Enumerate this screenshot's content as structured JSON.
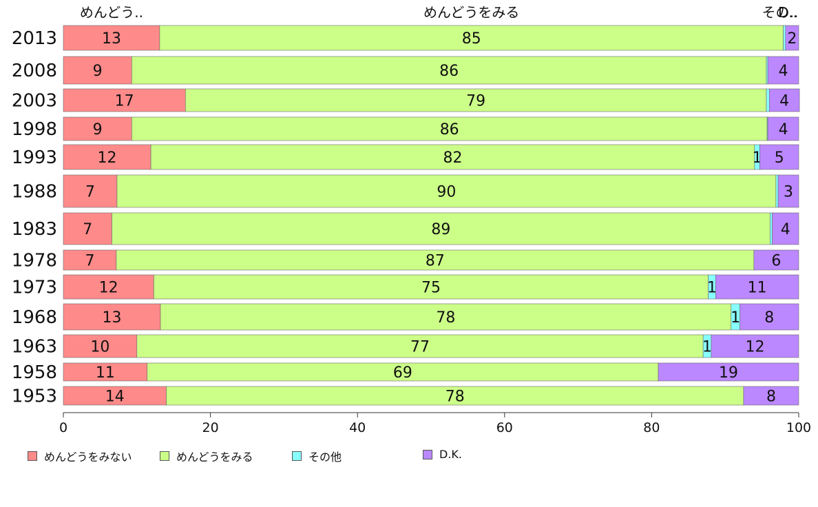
{
  "chart_data": {
    "type": "bar",
    "orientation": "horizontal",
    "stacked": true,
    "title": "",
    "xlabel": "",
    "ylabel": "",
    "xlim": [
      0,
      100
    ],
    "x_ticks": [
      "0",
      "20",
      "40",
      "60",
      "80",
      "100"
    ],
    "top_labels": [
      "めんどう..",
      "めんどうをみる",
      "その..",
      "D.."
    ],
    "categories": [
      "2013",
      "2008",
      "2003",
      "1998",
      "1993",
      "1988",
      "1983",
      "1978",
      "1973",
      "1968",
      "1963",
      "1958",
      "1953"
    ],
    "series": [
      {
        "name": "めんどうをみない",
        "color": "#ff8a8a",
        "values": [
          13,
          9,
          17,
          9,
          12,
          7,
          7,
          7,
          12,
          13,
          10,
          11,
          14
        ]
      },
      {
        "name": "めんどうをみる",
        "color": "#ccff88",
        "values": [
          85,
          86,
          79,
          86,
          82,
          90,
          89,
          87,
          75,
          78,
          77,
          69,
          78
        ]
      },
      {
        "name": "その他",
        "color": "#88ffff",
        "values": [
          0,
          0,
          0,
          0,
          1,
          0,
          0,
          0,
          1,
          1,
          1,
          0,
          0
        ]
      },
      {
        "name": "D.K.",
        "color": "#bb88ff",
        "values": [
          2,
          4,
          4,
          4,
          5,
          3,
          4,
          6,
          11,
          8,
          12,
          19,
          8
        ]
      }
    ],
    "segments_pct": [
      [
        13.1,
        84.8,
        0.3,
        1.8
      ],
      [
        9.3,
        86.3,
        0.2,
        4.2
      ],
      [
        16.6,
        79.0,
        0.4,
        4.1
      ],
      [
        9.3,
        86.4,
        0.1,
        4.2
      ],
      [
        11.9,
        82.1,
        0.7,
        5.3
      ],
      [
        7.3,
        89.6,
        0.3,
        2.8
      ],
      [
        6.6,
        89.5,
        0.3,
        3.6
      ],
      [
        7.2,
        86.7,
        0.0,
        6.1
      ],
      [
        12.3,
        75.4,
        1.0,
        11.3
      ],
      [
        13.2,
        77.6,
        1.2,
        8.0
      ],
      [
        10.0,
        77.0,
        1.1,
        11.9
      ],
      [
        11.4,
        69.5,
        0.0,
        19.1
      ],
      [
        14.0,
        78.5,
        0.0,
        7.5
      ]
    ],
    "legend_position": "bottom-left",
    "grid": false
  },
  "legend": {
    "items": [
      {
        "label": "めんどうをみない",
        "color": "#ff8a8a"
      },
      {
        "label": "めんどうをみる",
        "color": "#ccff88"
      },
      {
        "label": "その他",
        "color": "#88ffff"
      },
      {
        "label": "D.K.",
        "color": "#bb88ff"
      }
    ]
  }
}
